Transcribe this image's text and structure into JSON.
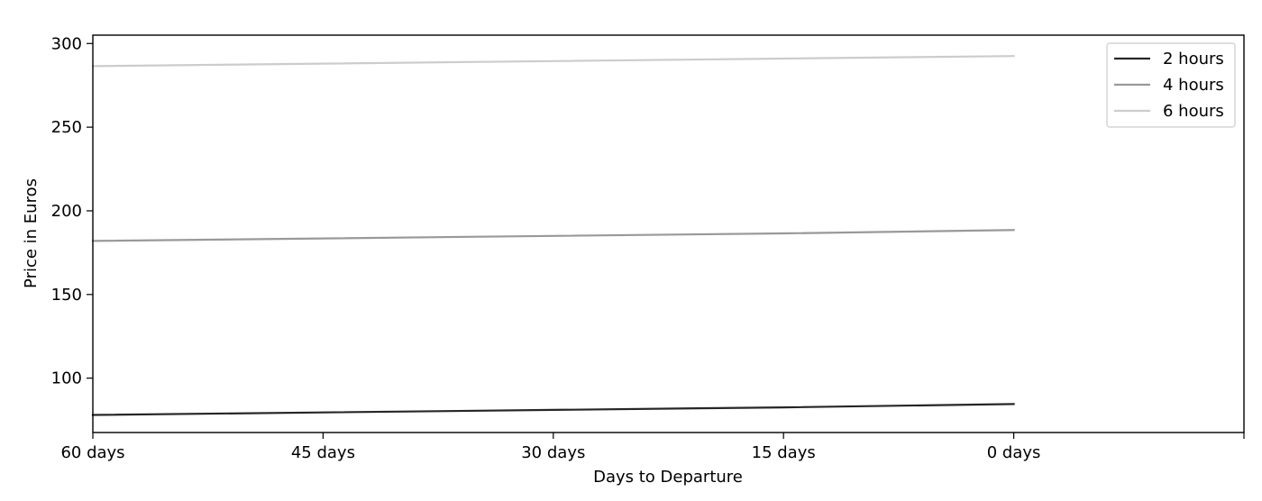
{
  "chart_data": {
    "type": "line",
    "title": "",
    "xlabel": "Days to Departure",
    "ylabel": "Price in Euros",
    "categories": [
      "60 days",
      "45 days",
      "30 days",
      "15 days",
      "0 days"
    ],
    "x": [
      60,
      45,
      30,
      15,
      0
    ],
    "xlim": [
      60,
      -15
    ],
    "ylim": [
      67.5,
      305
    ],
    "yticks": [
      100,
      150,
      200,
      250,
      300
    ],
    "grid": false,
    "legend": "top-right",
    "series": [
      {
        "name": "2 hours",
        "color": "#262626",
        "values": [
          78,
          79.5,
          81,
          82.5,
          84.5
        ]
      },
      {
        "name": "4 hours",
        "color": "#999999",
        "values": [
          182,
          183.5,
          185,
          186.5,
          188.5
        ]
      },
      {
        "name": "6 hours",
        "color": "#cccccc",
        "values": [
          286.5,
          288,
          289.5,
          291,
          292.5
        ]
      }
    ]
  }
}
